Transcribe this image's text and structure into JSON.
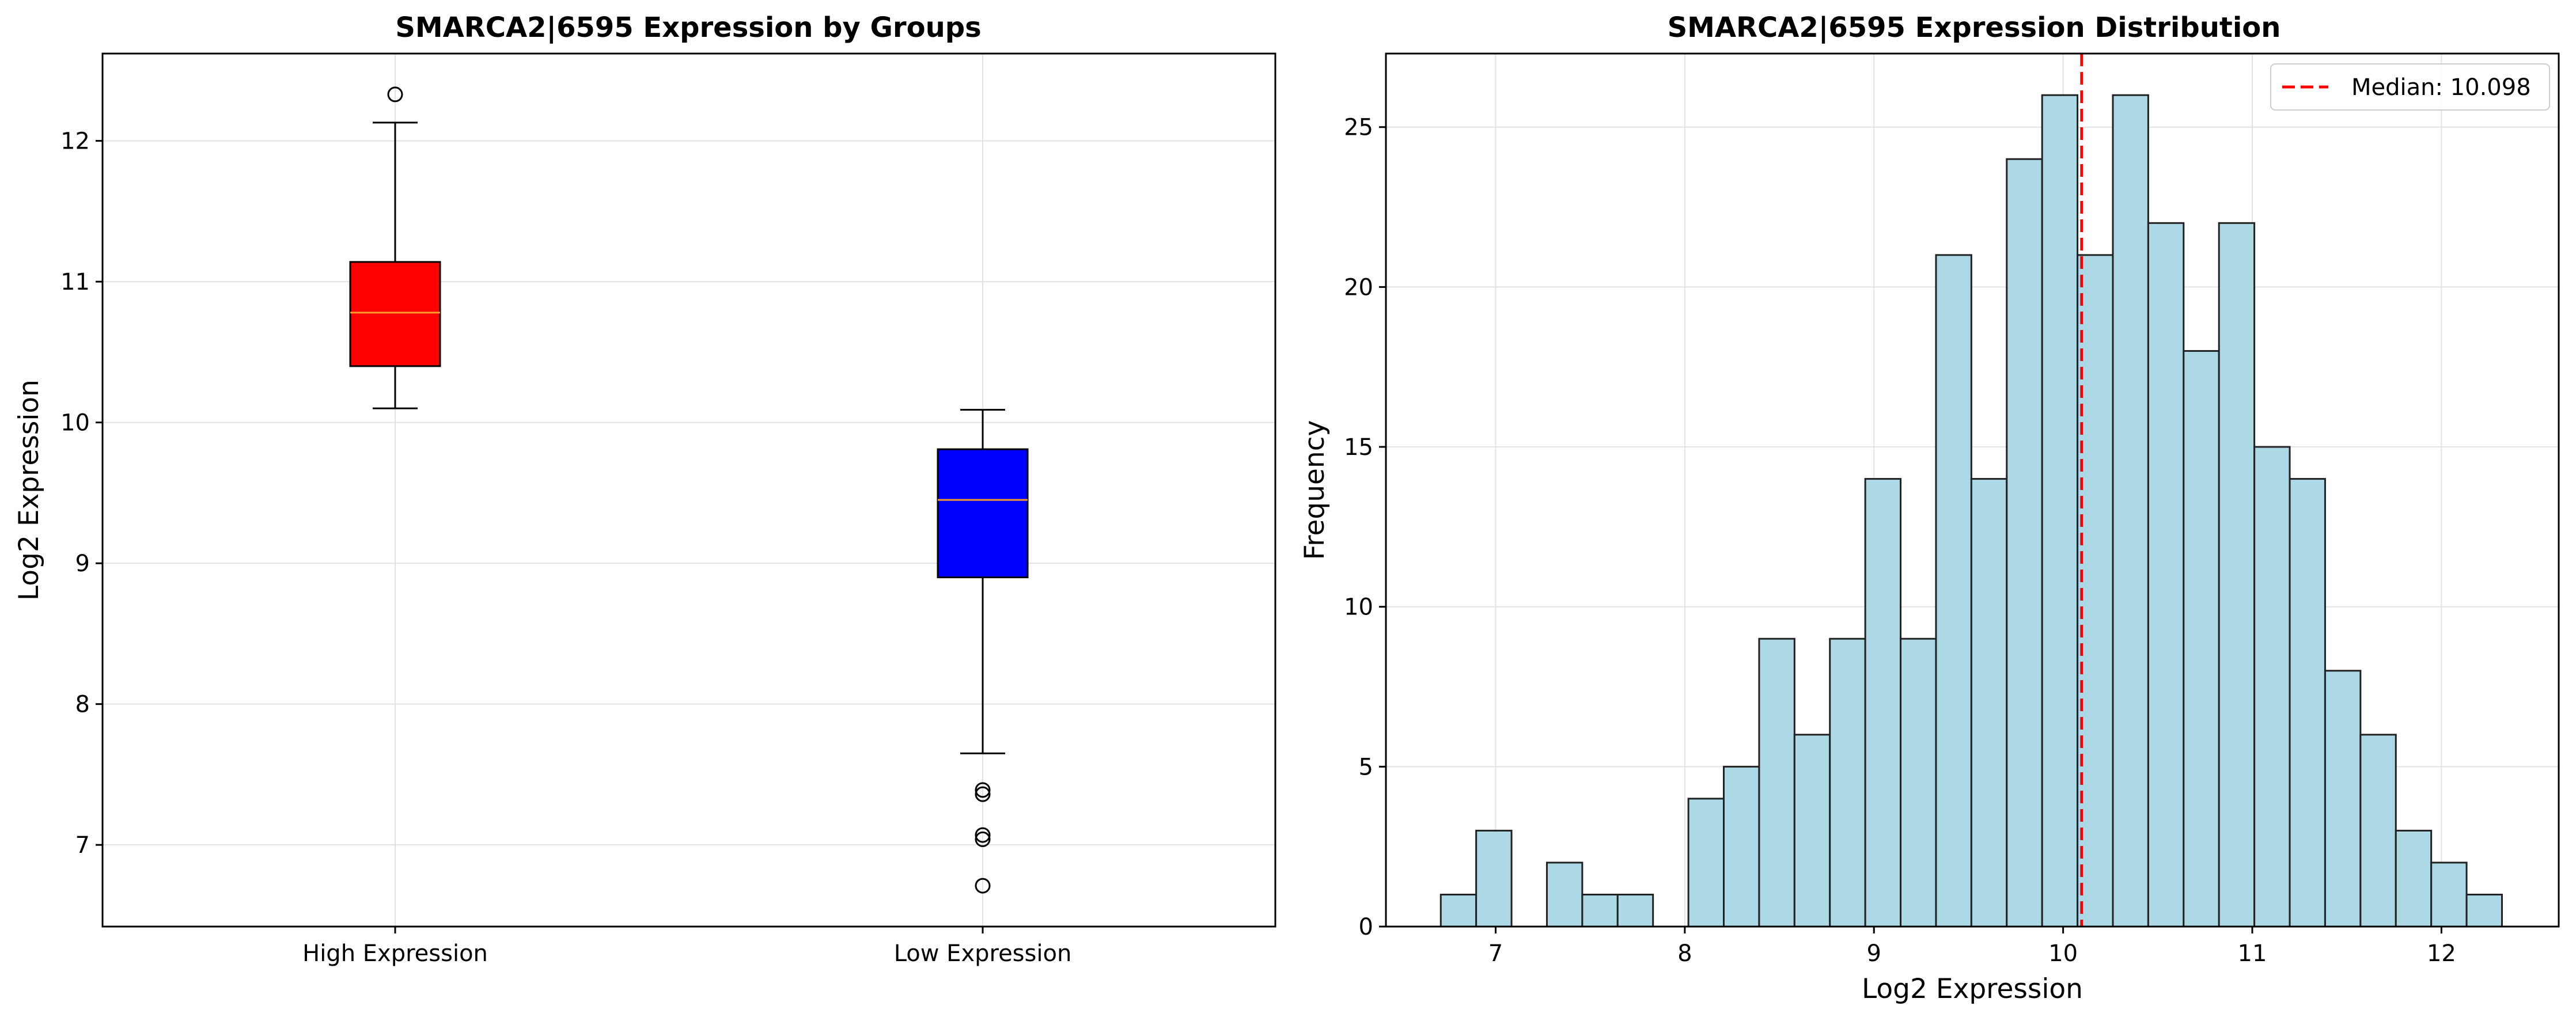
{
  "chart_data": [
    {
      "type": "box",
      "title": "SMARCA2|6595 Expression by Groups",
      "xlabel": "",
      "ylabel": "Log2 Expression",
      "ylim": [
        6.42,
        12.62
      ],
      "yticks": [
        7,
        8,
        9,
        10,
        11,
        12
      ],
      "grid": true,
      "categories": [
        "High Expression",
        "Low Expression"
      ],
      "boxes": [
        {
          "name": "High Expression",
          "color": "#ff0000",
          "whisker_low": 10.1,
          "q1": 10.4,
          "median": 10.78,
          "q3": 11.14,
          "whisker_high": 12.13,
          "outliers": [
            12.33
          ]
        },
        {
          "name": "Low Expression",
          "color": "#0000ff",
          "whisker_low": 7.65,
          "q1": 8.9,
          "median": 9.45,
          "q3": 9.81,
          "whisker_high": 10.09,
          "outliers": [
            7.39,
            7.36,
            7.07,
            7.04,
            6.71
          ]
        }
      ]
    },
    {
      "type": "histogram",
      "title": "SMARCA2|6595 Expression Distribution",
      "xlabel": "Log2 Expression",
      "ylabel": "Frequency",
      "xlim": [
        6.42,
        12.62
      ],
      "ylim": [
        0,
        27.3
      ],
      "xticks": [
        7,
        8,
        9,
        10,
        11,
        12
      ],
      "yticks": [
        0,
        5,
        10,
        15,
        20,
        25
      ],
      "grid": true,
      "bar_color": "#add8e6",
      "bin_start": 6.71,
      "bin_width": 0.187,
      "counts": [
        1,
        3,
        0,
        2,
        1,
        1,
        0,
        4,
        5,
        9,
        6,
        9,
        14,
        9,
        21,
        14,
        24,
        26,
        21,
        26,
        22,
        18,
        22,
        15,
        14,
        8,
        6,
        3,
        2,
        1
      ],
      "median": 10.098,
      "median_color": "#ff0000",
      "legend": {
        "placement": "top-right",
        "label": "Median: 10.098"
      }
    }
  ]
}
